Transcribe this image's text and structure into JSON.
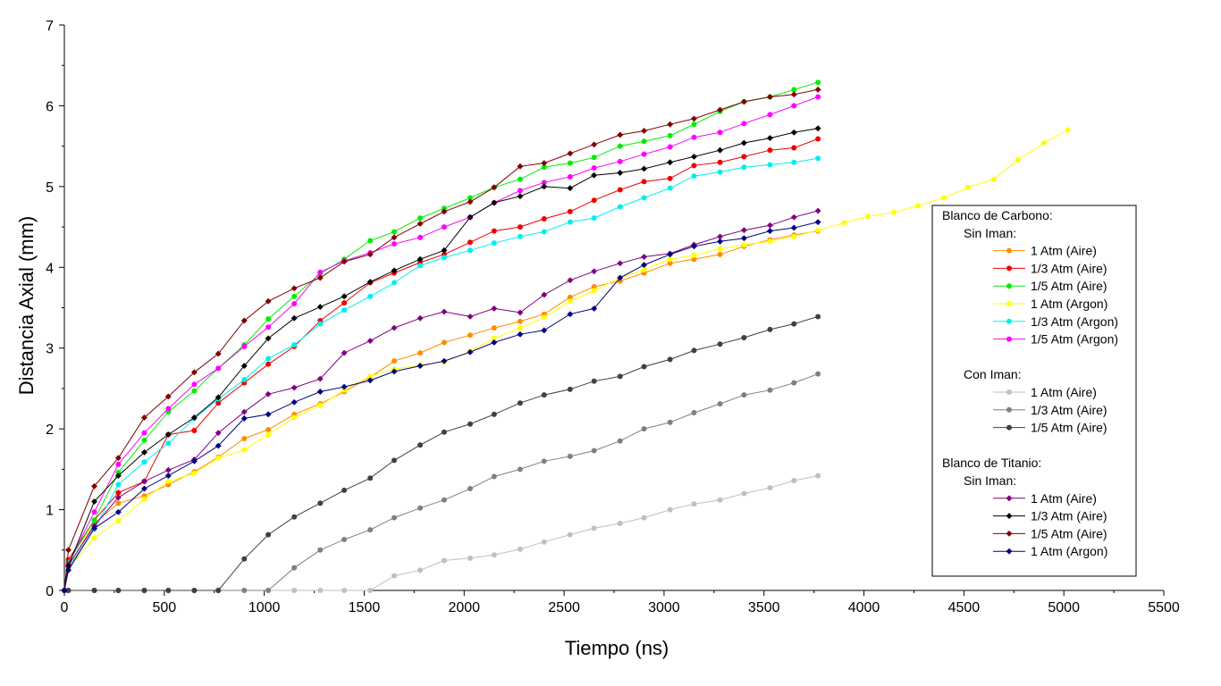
{
  "chart_data": {
    "type": "line",
    "xlabel": "Tiempo (ns)",
    "ylabel": "Distancia Axial (mm)",
    "xlim": [
      0,
      5500
    ],
    "ylim": [
      0,
      7
    ],
    "xticks": [
      0,
      500,
      1000,
      1500,
      2000,
      2500,
      3000,
      3500,
      4000,
      4500,
      5000,
      5500
    ],
    "yticks": [
      0,
      1,
      2,
      3,
      4,
      5,
      6,
      7
    ],
    "grid": false,
    "legend_position": "right",
    "legend": [
      {
        "kind": "header",
        "text": "Blanco de Carbono:",
        "level": 0
      },
      {
        "kind": "header",
        "text": "Sin Iman:",
        "level": 1
      },
      {
        "kind": "series",
        "series": 0
      },
      {
        "kind": "series",
        "series": 1
      },
      {
        "kind": "series",
        "series": 2
      },
      {
        "kind": "series",
        "series": 3
      },
      {
        "kind": "series",
        "series": 4
      },
      {
        "kind": "series",
        "series": 5
      },
      {
        "kind": "blank"
      },
      {
        "kind": "header",
        "text": "Con Iman:",
        "level": 1
      },
      {
        "kind": "series",
        "series": 6
      },
      {
        "kind": "series",
        "series": 7
      },
      {
        "kind": "series",
        "series": 8
      },
      {
        "kind": "blank"
      },
      {
        "kind": "header",
        "text": "Blanco de Titanio:",
        "level": 0
      },
      {
        "kind": "header",
        "text": "Sin Iman:",
        "level": 1
      },
      {
        "kind": "series",
        "series": 9
      },
      {
        "kind": "series",
        "series": 10
      },
      {
        "kind": "series",
        "series": 11
      },
      {
        "kind": "series",
        "series": 12
      }
    ],
    "series": [
      {
        "name": "1 Atm (Aire)",
        "color": "#ff8c00",
        "marker": "circle",
        "x": [
          0,
          20,
          150,
          270,
          400,
          520,
          650,
          770,
          900,
          1020,
          1150,
          1280,
          1400,
          1530,
          1650,
          1780,
          1900,
          2030,
          2150,
          2280,
          2400,
          2530,
          2650,
          2780,
          2900,
          3030,
          3150,
          3280,
          3400,
          3530,
          3650,
          3770
        ],
        "y": [
          0,
          0.3,
          0.83,
          1.08,
          1.17,
          1.31,
          1.47,
          1.65,
          1.88,
          1.99,
          2.18,
          2.31,
          2.46,
          2.64,
          2.84,
          2.94,
          3.07,
          3.16,
          3.25,
          3.33,
          3.42,
          3.63,
          3.76,
          3.83,
          3.93,
          4.05,
          4.1,
          4.16,
          4.26,
          4.34,
          4.4,
          4.45
        ]
      },
      {
        "name": "1/3 Atm (Aire)",
        "color": "#ee0000",
        "marker": "circle",
        "x": [
          0,
          20,
          150,
          270,
          400,
          520,
          650,
          770,
          900,
          1020,
          1150,
          1280,
          1400,
          1530,
          1650,
          1780,
          1900,
          2030,
          2150,
          2280,
          2400,
          2530,
          2650,
          2780,
          2900,
          3030,
          3150,
          3280,
          3400,
          3530,
          3650,
          3770
        ],
        "y": [
          0,
          0.38,
          0.87,
          1.21,
          1.35,
          1.93,
          1.98,
          2.32,
          2.57,
          2.8,
          3.02,
          3.34,
          3.56,
          3.81,
          3.93,
          4.06,
          4.16,
          4.31,
          4.45,
          4.5,
          4.6,
          4.69,
          4.83,
          4.96,
          5.06,
          5.1,
          5.26,
          5.3,
          5.37,
          5.45,
          5.48,
          5.59
        ]
      },
      {
        "name": "1/5 Atm (Aire)",
        "color": "#00ee00",
        "marker": "circle",
        "x": [
          0,
          20,
          150,
          270,
          400,
          520,
          650,
          770,
          900,
          1020,
          1150,
          1280,
          1400,
          1530,
          1650,
          1780,
          1900,
          2030,
          2150,
          2280,
          2400,
          2530,
          2650,
          2780,
          2900,
          3030,
          3150,
          3280,
          3400,
          3530,
          3650,
          3770
        ],
        "y": [
          0,
          0.35,
          0.87,
          1.46,
          1.86,
          2.21,
          2.47,
          2.75,
          3.04,
          3.36,
          3.64,
          3.92,
          4.1,
          4.33,
          4.44,
          4.61,
          4.73,
          4.86,
          4.99,
          5.09,
          5.24,
          5.29,
          5.36,
          5.5,
          5.56,
          5.63,
          5.77,
          5.93,
          6.05,
          6.11,
          6.2,
          6.29
        ]
      },
      {
        "name": "1 Atm (Argon)",
        "color": "#ffff00",
        "marker": "circle",
        "x": [
          0,
          20,
          150,
          270,
          400,
          520,
          650,
          770,
          900,
          1020,
          1150,
          1280,
          1400,
          1530,
          1650,
          1780,
          1900,
          2030,
          2150,
          2280,
          2400,
          2530,
          2650,
          2780,
          2900,
          3030,
          3150,
          3280,
          3400,
          3530,
          3650,
          3770,
          3900,
          4020,
          4150,
          4270,
          4400,
          4520,
          4650,
          4770,
          4900,
          5020
        ],
        "y": [
          0,
          0.27,
          0.65,
          0.86,
          1.13,
          1.35,
          1.45,
          1.64,
          1.74,
          1.93,
          2.14,
          2.29,
          2.48,
          2.65,
          2.74,
          2.79,
          2.83,
          2.96,
          3.12,
          3.25,
          3.38,
          3.58,
          3.71,
          3.87,
          3.97,
          4.1,
          4.15,
          4.23,
          4.28,
          4.32,
          4.38,
          4.46,
          4.55,
          4.63,
          4.68,
          4.76,
          4.86,
          4.99,
          5.09,
          5.33,
          5.54,
          5.7
        ]
      },
      {
        "name": "1/3 Atm (Argon)",
        "color": "#00eeee",
        "marker": "circle",
        "x": [
          0,
          20,
          150,
          270,
          400,
          520,
          650,
          770,
          900,
          1020,
          1150,
          1280,
          1400,
          1530,
          1650,
          1780,
          1900,
          2030,
          2150,
          2280,
          2400,
          2530,
          2650,
          2780,
          2900,
          3030,
          3150,
          3280,
          3400,
          3530,
          3650,
          3770
        ],
        "y": [
          0,
          0.28,
          0.76,
          1.31,
          1.59,
          1.82,
          2.13,
          2.37,
          2.61,
          2.87,
          3.04,
          3.3,
          3.47,
          3.64,
          3.81,
          4.02,
          4.12,
          4.21,
          4.3,
          4.38,
          4.44,
          4.56,
          4.61,
          4.75,
          4.86,
          4.98,
          5.13,
          5.18,
          5.24,
          5.27,
          5.3,
          5.35
        ]
      },
      {
        "name": "1/5 Atm (Argon)",
        "color": "#ff00ff",
        "marker": "circle",
        "x": [
          0,
          20,
          150,
          270,
          400,
          520,
          650,
          770,
          900,
          1020,
          1150,
          1280,
          1400,
          1530,
          1650,
          1780,
          1900,
          2030,
          2150,
          2280,
          2400,
          2530,
          2650,
          2780,
          2900,
          3030,
          3150,
          3280,
          3400,
          3530,
          3650,
          3770
        ],
        "y": [
          0,
          0.33,
          0.97,
          1.56,
          1.95,
          2.25,
          2.55,
          2.75,
          3.02,
          3.26,
          3.55,
          3.94,
          4.08,
          4.18,
          4.29,
          4.37,
          4.5,
          4.62,
          4.8,
          4.95,
          5.05,
          5.12,
          5.23,
          5.31,
          5.4,
          5.49,
          5.61,
          5.67,
          5.78,
          5.89,
          6.0,
          6.11
        ]
      },
      {
        "name": "1 Atm (Aire)",
        "color": "#bfbfbf",
        "marker": "circle",
        "x": [
          0,
          20,
          150,
          270,
          400,
          520,
          650,
          770,
          900,
          1020,
          1150,
          1280,
          1400,
          1530,
          1650,
          1780,
          1900,
          2030,
          2150,
          2280,
          2400,
          2530,
          2650,
          2780,
          2900,
          3030,
          3150,
          3280,
          3400,
          3530,
          3650,
          3770
        ],
        "y": [
          0,
          0,
          0,
          0,
          0,
          0,
          0,
          0,
          0,
          0,
          0,
          0,
          0,
          0,
          0.18,
          0.25,
          0.37,
          0.4,
          0.44,
          0.51,
          0.6,
          0.69,
          0.77,
          0.83,
          0.9,
          1.0,
          1.07,
          1.12,
          1.2,
          1.27,
          1.36,
          1.42
        ]
      },
      {
        "name": "1/3 Atm (Aire)",
        "color": "#808080",
        "marker": "circle",
        "x": [
          0,
          20,
          150,
          270,
          400,
          520,
          650,
          770,
          900,
          1020,
          1150,
          1280,
          1400,
          1530,
          1650,
          1780,
          1900,
          2030,
          2150,
          2280,
          2400,
          2530,
          2650,
          2780,
          2900,
          3030,
          3150,
          3280,
          3400,
          3530,
          3650,
          3770
        ],
        "y": [
          0,
          0,
          0,
          0,
          0,
          0,
          0,
          0,
          0,
          0,
          0.28,
          0.5,
          0.63,
          0.75,
          0.9,
          1.02,
          1.12,
          1.26,
          1.41,
          1.5,
          1.6,
          1.66,
          1.73,
          1.85,
          2.0,
          2.08,
          2.2,
          2.31,
          2.42,
          2.48,
          2.57,
          2.68
        ]
      },
      {
        "name": "1/5 Atm (Aire)",
        "color": "#404040",
        "marker": "circle",
        "x": [
          0,
          20,
          150,
          270,
          400,
          520,
          650,
          770,
          900,
          1020,
          1150,
          1280,
          1400,
          1530,
          1650,
          1780,
          1900,
          2030,
          2150,
          2280,
          2400,
          2530,
          2650,
          2780,
          2900,
          3030,
          3150,
          3280,
          3400,
          3530,
          3650,
          3770
        ],
        "y": [
          0,
          0,
          0,
          0,
          0,
          0,
          0,
          0,
          0.39,
          0.69,
          0.91,
          1.08,
          1.24,
          1.39,
          1.61,
          1.8,
          1.96,
          2.06,
          2.18,
          2.32,
          2.42,
          2.49,
          2.59,
          2.65,
          2.77,
          2.86,
          2.97,
          3.05,
          3.13,
          3.23,
          3.3,
          3.39
        ]
      },
      {
        "name": "1 Atm (Aire)",
        "color": "#800080",
        "marker": "diamond",
        "x": [
          0,
          20,
          150,
          270,
          400,
          520,
          650,
          770,
          900,
          1020,
          1150,
          1280,
          1400,
          1530,
          1650,
          1780,
          1900,
          2030,
          2150,
          2280,
          2400,
          2530,
          2650,
          2780,
          2900,
          3030,
          3150,
          3280,
          3400,
          3530,
          3650,
          3770
        ],
        "y": [
          0,
          0.31,
          0.8,
          1.15,
          1.35,
          1.49,
          1.62,
          1.95,
          2.21,
          2.43,
          2.51,
          2.62,
          2.94,
          3.09,
          3.25,
          3.37,
          3.45,
          3.39,
          3.49,
          3.44,
          3.66,
          3.84,
          3.95,
          4.05,
          4.13,
          4.17,
          4.28,
          4.38,
          4.46,
          4.52,
          4.62,
          4.7
        ]
      },
      {
        "name": "1/3 Atm (Aire)",
        "color": "#000000",
        "marker": "diamond",
        "x": [
          0,
          20,
          150,
          270,
          400,
          520,
          650,
          770,
          900,
          1020,
          1150,
          1280,
          1400,
          1530,
          1650,
          1780,
          1900,
          2030,
          2150,
          2280,
          2400,
          2530,
          2650,
          2780,
          2900,
          3030,
          3150,
          3280,
          3400,
          3530,
          3650,
          3770
        ],
        "y": [
          0,
          0.3,
          1.1,
          1.42,
          1.71,
          1.93,
          2.14,
          2.39,
          2.78,
          3.12,
          3.37,
          3.51,
          3.64,
          3.82,
          3.96,
          4.1,
          4.21,
          4.62,
          4.8,
          4.88,
          5.0,
          4.98,
          5.14,
          5.17,
          5.22,
          5.3,
          5.37,
          5.45,
          5.54,
          5.6,
          5.67,
          5.72
        ]
      },
      {
        "name": "1/5 Atm (Aire)",
        "color": "#800000",
        "marker": "diamond",
        "x": [
          0,
          20,
          150,
          270,
          400,
          520,
          650,
          770,
          900,
          1020,
          1150,
          1280,
          1400,
          1530,
          1650,
          1780,
          1900,
          2030,
          2150,
          2280,
          2400,
          2530,
          2650,
          2780,
          2900,
          3030,
          3150,
          3280,
          3400,
          3530,
          3650,
          3770
        ],
        "y": [
          0,
          0.5,
          1.29,
          1.64,
          2.14,
          2.4,
          2.7,
          2.93,
          3.34,
          3.58,
          3.74,
          3.87,
          4.07,
          4.16,
          4.37,
          4.54,
          4.69,
          4.81,
          4.99,
          5.25,
          5.29,
          5.41,
          5.52,
          5.64,
          5.69,
          5.77,
          5.84,
          5.95,
          6.05,
          6.11,
          6.14,
          6.2
        ]
      },
      {
        "name": "1 Atm (Argon)",
        "color": "#000080",
        "marker": "diamond",
        "x": [
          0,
          20,
          150,
          270,
          400,
          520,
          650,
          770,
          900,
          1020,
          1150,
          1280,
          1400,
          1530,
          1650,
          1780,
          1900,
          2030,
          2150,
          2280,
          2400,
          2530,
          2650,
          2780,
          2900,
          3030,
          3150,
          3280,
          3400,
          3530,
          3650,
          3770
        ],
        "y": [
          0,
          0.25,
          0.77,
          0.97,
          1.26,
          1.42,
          1.6,
          1.79,
          2.13,
          2.18,
          2.33,
          2.46,
          2.52,
          2.6,
          2.71,
          2.78,
          2.84,
          2.95,
          3.07,
          3.17,
          3.22,
          3.42,
          3.49,
          3.87,
          4.03,
          4.16,
          4.26,
          4.32,
          4.36,
          4.45,
          4.49,
          4.56
        ]
      }
    ]
  }
}
